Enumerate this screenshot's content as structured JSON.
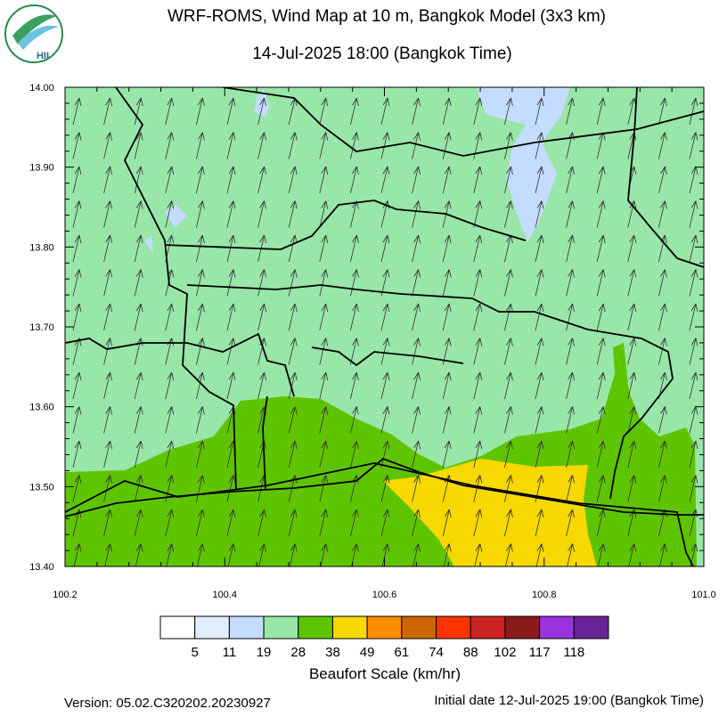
{
  "logo": "HII",
  "title": "WRF-ROMS, Wind Map at 10 m, Bangkok Model (3x3 km)",
  "subtitle": "14-Jul-2025 18:00 (Bangkok Time)",
  "map": {
    "xlim": [
      100.2,
      101.0
    ],
    "ylim": [
      13.4,
      14.0
    ],
    "xticks": [
      100.2,
      100.4,
      100.6,
      100.8,
      {
        "value": 101.0,
        "label": "101.0"
      }
    ],
    "yticks": [
      {
        "value": 13.4,
        "label": "13.40"
      },
      {
        "value": 13.5,
        "label": "13.50"
      },
      {
        "value": 13.6,
        "label": "13.60"
      },
      {
        "value": 13.7,
        "label": "13.70"
      },
      {
        "value": 13.8,
        "label": "13.80"
      },
      {
        "value": 13.9,
        "label": "13.90"
      },
      {
        "value": 14.0,
        "label": "14.00"
      }
    ]
  },
  "colorbar": {
    "title": "Beaufort Scale (km/hr)",
    "colors": [
      "#ffffff",
      "#e1eeff",
      "#c4dcff",
      "#98e6a8",
      "#5fc400",
      "#f7d800",
      "#ff8c00",
      "#cc6600",
      "#ff3300",
      "#cc2222",
      "#8b1a1a",
      "#9933dd",
      "#6a2299"
    ],
    "labels": [
      5,
      11,
      19,
      28,
      38,
      49,
      61,
      74,
      88,
      102,
      117,
      118
    ]
  },
  "footer": {
    "version": "Version: 05.02.C320202.20230927",
    "initial": "Initial date 12-Jul-2025 19:00 (Bangkok Time)"
  }
}
